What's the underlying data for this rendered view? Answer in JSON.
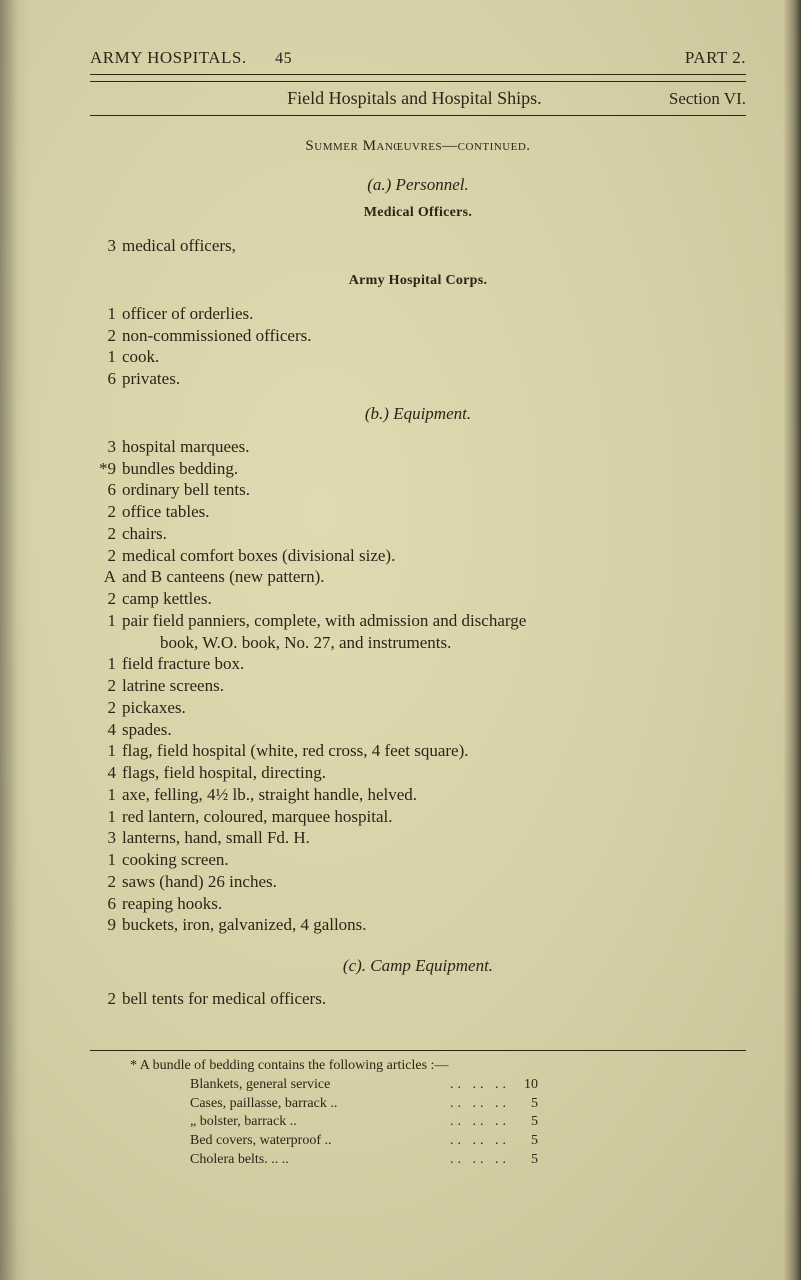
{
  "colors": {
    "paper_bg_center": "#e0dab2",
    "paper_bg_mid": "#d6cfa5",
    "paper_bg_edge": "#c8c095",
    "ink": "#2a2617"
  },
  "typography": {
    "body_family": "Times New Roman",
    "body_size_pt": 17,
    "small_heading_pt": 14,
    "footnote_pt": 14,
    "line_height": 1.28
  },
  "header": {
    "left": "ARMY HOSPITALS.",
    "page_number": "45",
    "right": "PART 2."
  },
  "subheader": {
    "center": "Field Hospitals and Hospital Ships.",
    "right": "Section VI."
  },
  "continuation": "Summer Manœuvres—continued.",
  "section_a": {
    "heading": "(a.) Personnel.",
    "sub_medical": "Medical Officers.",
    "line1_num": "3",
    "line1_txt": "medical officers,",
    "sub_corps": "Army Hospital Corps.",
    "items": [
      {
        "num": "1",
        "txt": "officer of orderlies."
      },
      {
        "num": "2",
        "txt": "non-commissioned officers."
      },
      {
        "num": "1",
        "txt": "cook."
      },
      {
        "num": "6",
        "txt": "privates."
      }
    ]
  },
  "section_b": {
    "heading": "(b.) Equipment.",
    "items": [
      {
        "num": "3",
        "txt": "hospital marquees."
      },
      {
        "num": "*9",
        "txt": "bundles bedding."
      },
      {
        "num": "6",
        "txt": "ordinary bell tents."
      },
      {
        "num": "2",
        "txt": "office tables."
      },
      {
        "num": "2",
        "txt": "chairs."
      },
      {
        "num": "2",
        "txt": "medical comfort boxes (divisional size)."
      },
      {
        "num": "A",
        "txt": "and B canteens (new pattern)."
      },
      {
        "num": "2",
        "txt": "camp kettles."
      },
      {
        "num": "1",
        "txt": "pair field panniers, complete, with admission and discharge"
      },
      {
        "num": "",
        "txt": "book, W.O. book, No. 27, and instruments.",
        "cont": true
      },
      {
        "num": "1",
        "txt": "field fracture box."
      },
      {
        "num": "2",
        "txt": "latrine screens."
      },
      {
        "num": "2",
        "txt": "pickaxes."
      },
      {
        "num": "4",
        "txt": "spades."
      },
      {
        "num": "1",
        "txt": "flag, field hospital (white, red cross, 4 feet square)."
      },
      {
        "num": "4",
        "txt": "flags, field hospital, directing."
      },
      {
        "num": "1",
        "txt": "axe, felling, 4½ lb., straight handle, helved."
      },
      {
        "num": "1",
        "txt": "red lantern, coloured, marquee hospital."
      },
      {
        "num": "3",
        "txt": "lanterns, hand, small Fd. H."
      },
      {
        "num": "1",
        "txt": "cooking screen."
      },
      {
        "num": "2",
        "txt": "saws (hand) 26 inches."
      },
      {
        "num": "6",
        "txt": "reaping hooks."
      },
      {
        "num": "9",
        "txt": "buckets, iron, galvanized, 4 gallons."
      }
    ]
  },
  "section_c": {
    "heading": "(c). Camp Equipment.",
    "line_num": "2",
    "line_txt": "bell tents for medical officers."
  },
  "footnote": {
    "lead": "* A bundle of bedding contains the following articles :—",
    "rows": [
      {
        "label": "Blankets, general service",
        "dots": "..   ..   ..",
        "val": "10"
      },
      {
        "label": "Cases, paillasse, barrack ..",
        "dots": "..   ..   ..",
        "val": "5"
      },
      {
        "label": "  „   bolster, barrack  ..",
        "dots": "..   ..   ..",
        "val": "5"
      },
      {
        "label": "Bed covers, waterproof ..",
        "dots": "..   ..   ..",
        "val": "5"
      },
      {
        "label": "Cholera belts.    ..    ..",
        "dots": "..   ..   ..",
        "val": "5"
      }
    ]
  }
}
